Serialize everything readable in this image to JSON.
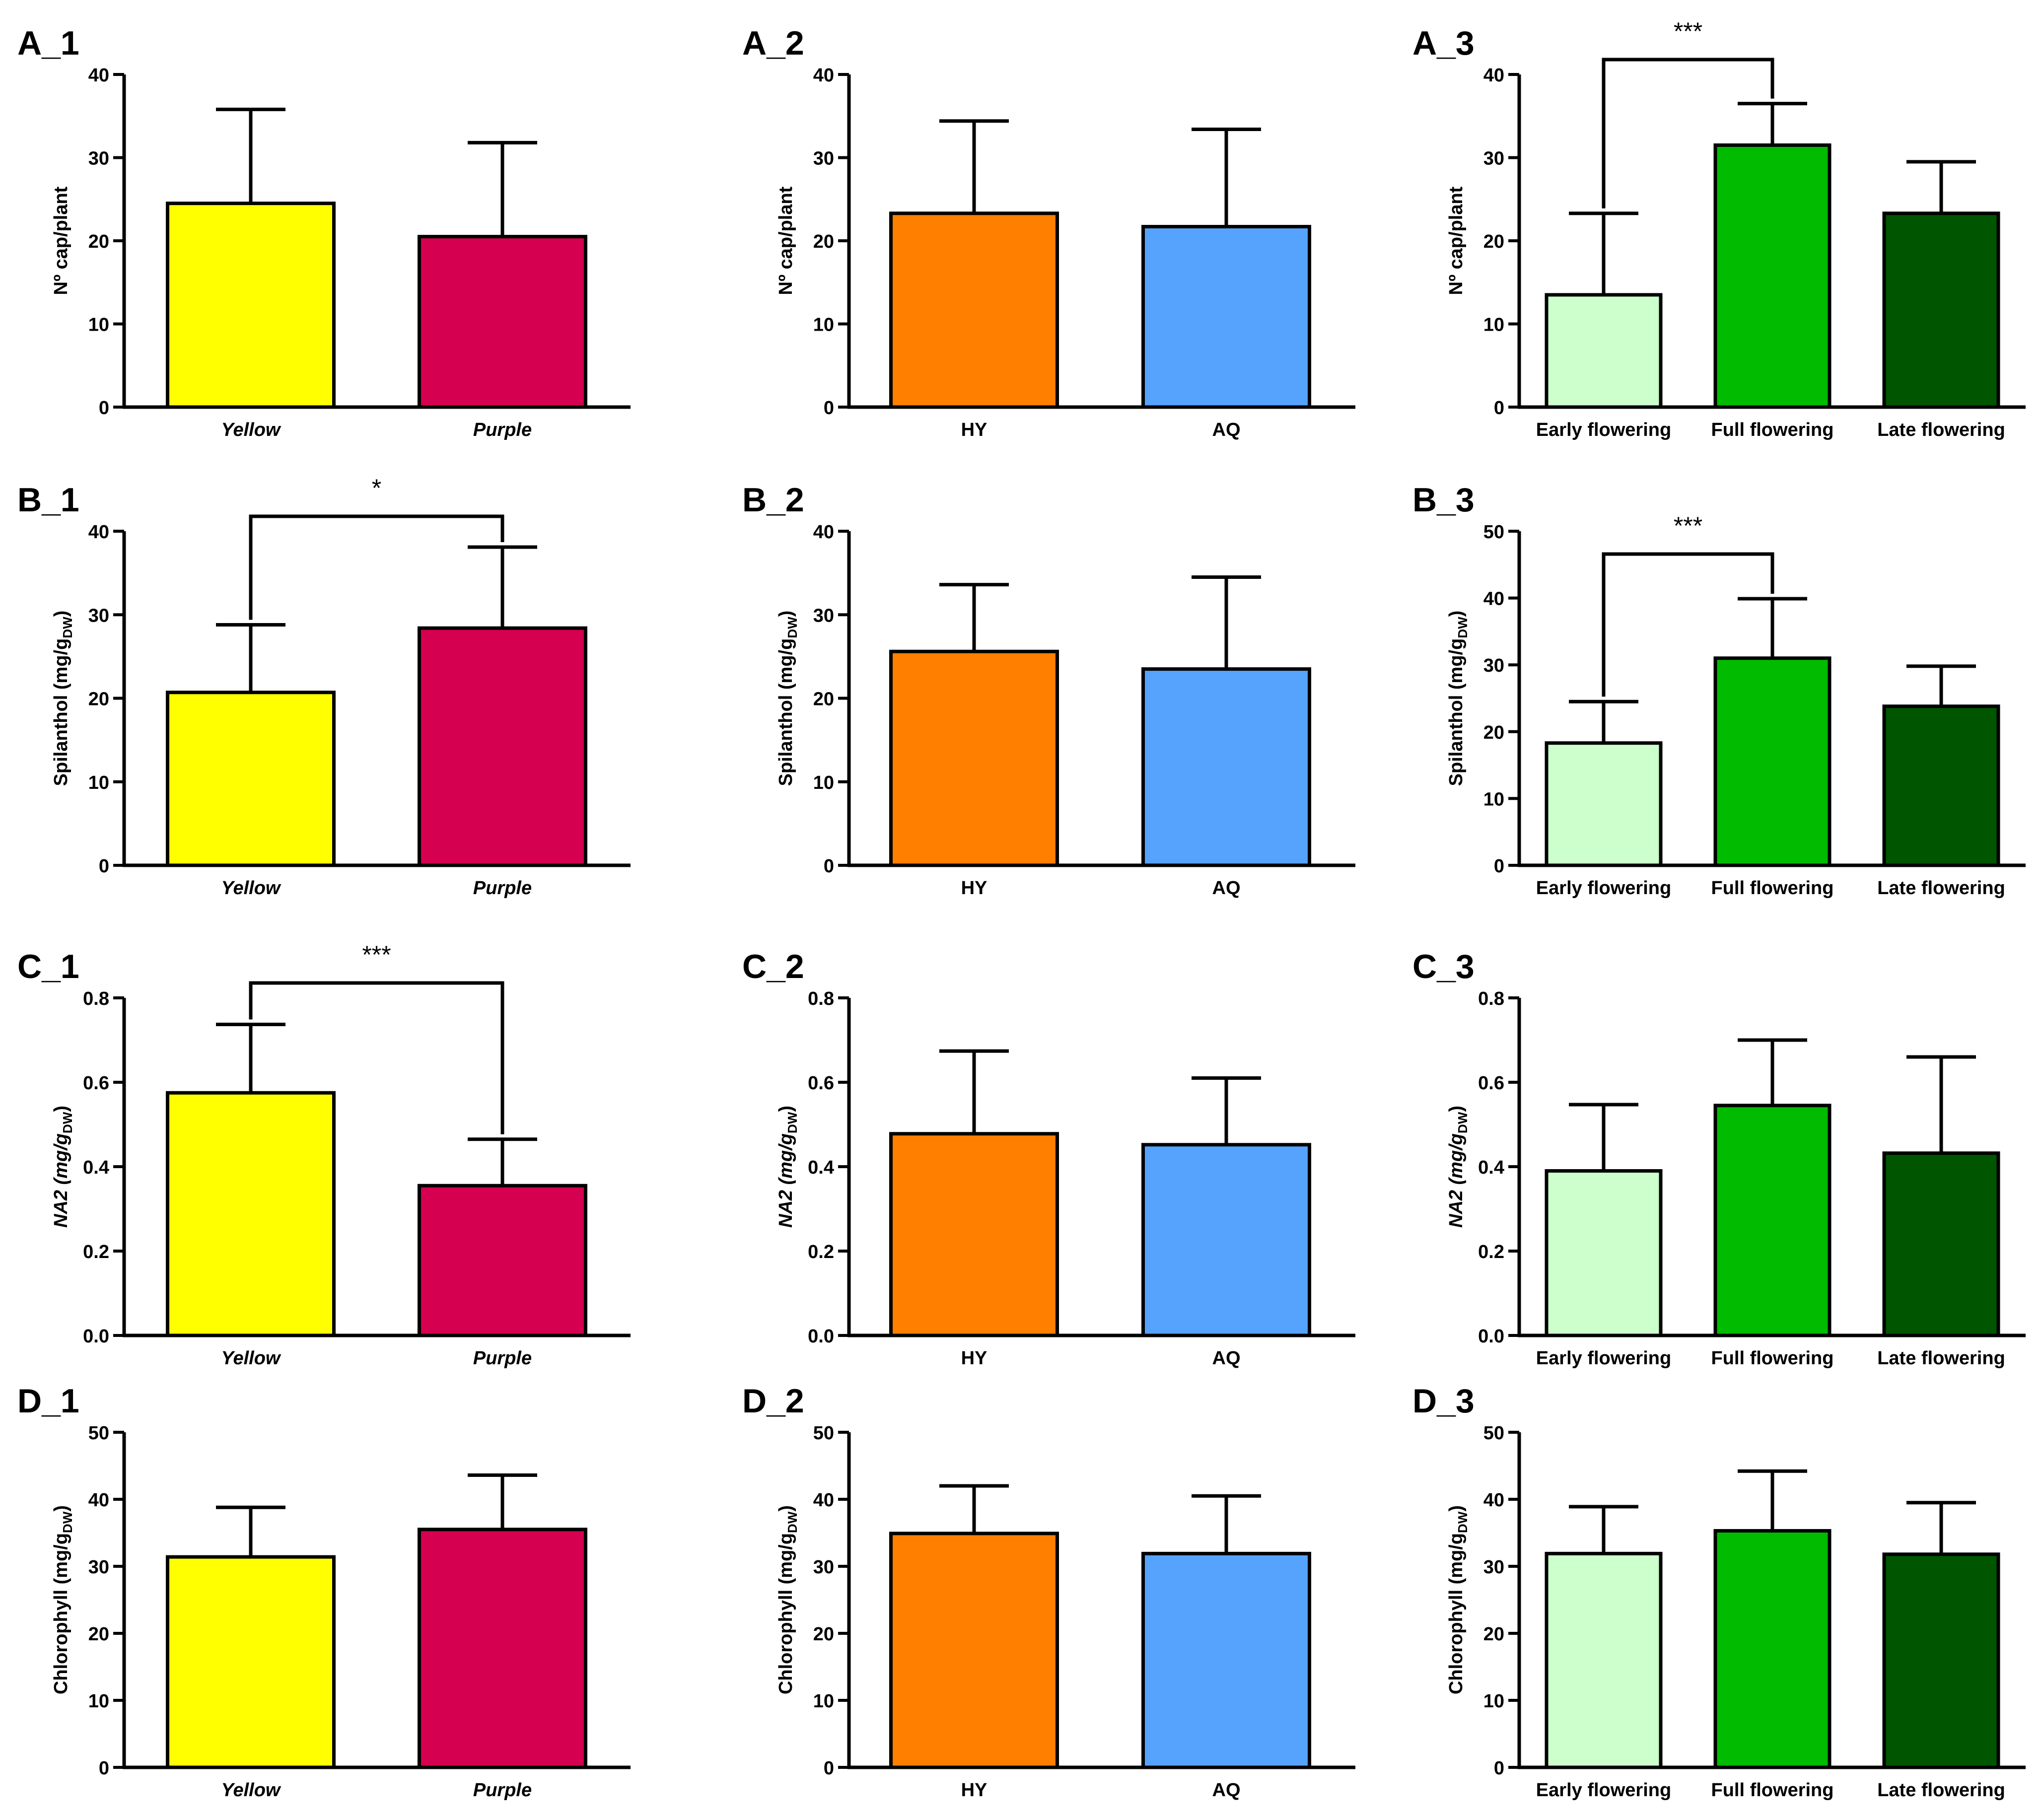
{
  "figure": {
    "palettes": {
      "flower": [
        "#FFFF00",
        "#D5004F"
      ],
      "extract": [
        "#FF7F00",
        "#55A3FC"
      ],
      "stage": [
        "#CCFFCC",
        "#00BB00",
        "#005500"
      ]
    },
    "axis_labels": {
      "caps": "Nº cap/plant",
      "spilanthol": "Spilanthol (mg/g",
      "na2": "NA2 (mg/g",
      "chlorophyll": "Chlorophyll (mg/g",
      "subscript": "DW",
      "close": ")"
    }
  },
  "chart_data": [
    {
      "id": "A_1",
      "type": "bar",
      "title": "A_1",
      "ylabel": "Nº cap/plant",
      "label_key": "caps",
      "categories": [
        "Yellow",
        "Purple"
      ],
      "italic_categories": true,
      "palette": "flower",
      "values": [
        24.5,
        20.5
      ],
      "errors": [
        11.3,
        11.3
      ],
      "ylim": [
        0,
        40
      ],
      "ticks": [
        "0",
        "10",
        "20",
        "30",
        "40"
      ],
      "significance": null
    },
    {
      "id": "A_2",
      "type": "bar",
      "title": "A_2",
      "ylabel": "Nº cap/plant",
      "label_key": "caps",
      "categories": [
        "HY",
        "AQ"
      ],
      "italic_categories": false,
      "palette": "extract",
      "values": [
        23.3,
        21.7
      ],
      "errors": [
        11.1,
        11.7
      ],
      "ylim": [
        0,
        40
      ],
      "ticks": [
        "0",
        "10",
        "20",
        "30",
        "40"
      ],
      "significance": null
    },
    {
      "id": "A_3",
      "type": "bar",
      "title": "A_3",
      "ylabel": "Nº cap/plant",
      "label_key": "caps",
      "categories": [
        "Early flowering",
        "Full flowering",
        "Late flowering"
      ],
      "italic_categories": false,
      "palette": "stage",
      "values": [
        13.5,
        31.5,
        23.3
      ],
      "errors": [
        9.8,
        5.0,
        6.2
      ],
      "ylim": [
        0,
        40
      ],
      "ticks": [
        "0",
        "10",
        "20",
        "30",
        "40"
      ],
      "significance": {
        "from": 0,
        "to": 1,
        "label": "***"
      }
    },
    {
      "id": "B_1",
      "type": "bar",
      "title": "B_1",
      "ylabel": "Spilanthol (mg/gDW)",
      "label_key": "spilanthol",
      "categories": [
        "Yellow",
        "Purple"
      ],
      "italic_categories": true,
      "palette": "flower",
      "values": [
        20.7,
        28.4
      ],
      "errors": [
        8.1,
        9.7
      ],
      "ylim": [
        0,
        40
      ],
      "ticks": [
        "0",
        "10",
        "20",
        "30",
        "40"
      ],
      "significance": {
        "from": 0,
        "to": 1,
        "label": "*"
      }
    },
    {
      "id": "B_2",
      "type": "bar",
      "title": "B_2",
      "ylabel": "Spilanthol (mg/gDW)",
      "label_key": "spilanthol",
      "categories": [
        "HY",
        "AQ"
      ],
      "italic_categories": false,
      "palette": "extract",
      "values": [
        25.6,
        23.5
      ],
      "errors": [
        8.0,
        11.0
      ],
      "ylim": [
        0,
        40
      ],
      "ticks": [
        "0",
        "10",
        "20",
        "30",
        "40"
      ],
      "significance": null
    },
    {
      "id": "B_3",
      "type": "bar",
      "title": "B_3",
      "ylabel": "Spilanthol (mg/gDW)",
      "label_key": "spilanthol",
      "categories": [
        "Early flowering",
        "Full flowering",
        "Late flowering"
      ],
      "italic_categories": false,
      "palette": "stage",
      "values": [
        18.3,
        31.0,
        23.8
      ],
      "errors": [
        6.2,
        8.9,
        6.0
      ],
      "ylim": [
        0,
        50
      ],
      "ticks": [
        "0",
        "10",
        "20",
        "30",
        "40",
        "50"
      ],
      "significance": {
        "from": 0,
        "to": 1,
        "label": "***"
      }
    },
    {
      "id": "C_1",
      "type": "bar",
      "title": "C_1",
      "ylabel": "NA2 (mg/gDW)",
      "label_key": "na2",
      "categories": [
        "Yellow",
        "Purple"
      ],
      "italic_categories": true,
      "palette": "flower",
      "values": [
        0.575,
        0.355
      ],
      "errors": [
        0.162,
        0.11
      ],
      "ylim": [
        0,
        0.8
      ],
      "ticks": [
        "0.0",
        "0.2",
        "0.4",
        "0.6",
        "0.8"
      ],
      "significance": {
        "from": 0,
        "to": 1,
        "label": "***"
      }
    },
    {
      "id": "C_2",
      "type": "bar",
      "title": "C_2",
      "ylabel": "NA2 (mg/gDW)",
      "label_key": "na2",
      "categories": [
        "HY",
        "AQ"
      ],
      "italic_categories": false,
      "palette": "extract",
      "values": [
        0.478,
        0.452
      ],
      "errors": [
        0.196,
        0.158
      ],
      "ylim": [
        0,
        0.8
      ],
      "ticks": [
        "0.0",
        "0.2",
        "0.4",
        "0.6",
        "0.8"
      ],
      "significance": null
    },
    {
      "id": "C_3",
      "type": "bar",
      "title": "C_3",
      "ylabel": "NA2 (mg/gDW)",
      "label_key": "na2",
      "categories": [
        "Early flowering",
        "Full flowering",
        "Late flowering"
      ],
      "italic_categories": false,
      "palette": "stage",
      "values": [
        0.39,
        0.545,
        0.432
      ],
      "errors": [
        0.157,
        0.155,
        0.228
      ],
      "ylim": [
        0,
        0.8
      ],
      "ticks": [
        "0.0",
        "0.2",
        "0.4",
        "0.6",
        "0.8"
      ],
      "significance": null
    },
    {
      "id": "D_1",
      "type": "bar",
      "title": "D_1",
      "ylabel": "Chlorophyll (mg/gDW)",
      "label_key": "chlorophyll",
      "categories": [
        "Yellow",
        "Purple"
      ],
      "italic_categories": true,
      "palette": "flower",
      "values": [
        31.4,
        35.5
      ],
      "errors": [
        7.4,
        8.1
      ],
      "ylim": [
        0,
        50
      ],
      "ticks": [
        "0",
        "10",
        "20",
        "30",
        "40",
        "50"
      ],
      "significance": null
    },
    {
      "id": "D_2",
      "type": "bar",
      "title": "D_2",
      "ylabel": "Chlorophyll (mg/gDW)",
      "label_key": "chlorophyll",
      "categories": [
        "HY",
        "AQ"
      ],
      "italic_categories": false,
      "palette": "extract",
      "values": [
        34.9,
        31.9
      ],
      "errors": [
        7.1,
        8.6
      ],
      "ylim": [
        0,
        50
      ],
      "ticks": [
        "0",
        "10",
        "20",
        "30",
        "40",
        "50"
      ],
      "significance": null
    },
    {
      "id": "D_3",
      "type": "bar",
      "title": "D_3",
      "ylabel": "Chlorophyll (mg/gDW)",
      "label_key": "chlorophyll",
      "categories": [
        "Early flowering",
        "Full flowering",
        "Late flowering"
      ],
      "italic_categories": false,
      "palette": "stage",
      "values": [
        31.9,
        35.3,
        31.8
      ],
      "errors": [
        7.0,
        8.9,
        7.7
      ],
      "ylim": [
        0,
        50
      ],
      "ticks": [
        "0",
        "10",
        "20",
        "30",
        "40",
        "50"
      ],
      "significance": null
    }
  ]
}
